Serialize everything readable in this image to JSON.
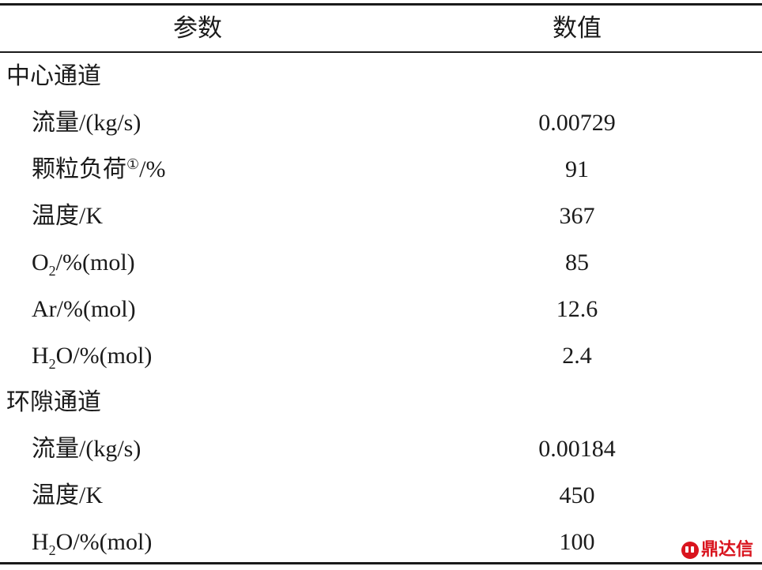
{
  "header": {
    "param": "参数",
    "value": "数值"
  },
  "sections": [
    {
      "title": "中心通道",
      "rows": [
        {
          "label": "流量/(kg/s)",
          "value": "0.00729"
        },
        {
          "label_main": "颗粒负荷",
          "label_mark": "①",
          "label_tail": "/%",
          "value": "91"
        },
        {
          "label": "温度/K",
          "value": "367"
        },
        {
          "label_main": "O",
          "label_sub": "2",
          "label_tail": "/%(mol)",
          "value": "85"
        },
        {
          "label": "Ar/%(mol)",
          "value": "12.6"
        },
        {
          "label_main": "H",
          "label_sub": "2",
          "label_tail": "O/%(mol)",
          "value": "2.4"
        }
      ]
    },
    {
      "title": "环隙通道",
      "rows": [
        {
          "label": "流量/(kg/s)",
          "value": "0.00184"
        },
        {
          "label": "温度/K",
          "value": "450"
        },
        {
          "label_main": "H",
          "label_sub": "2",
          "label_tail": "O/%(mol)",
          "value": "100"
        }
      ]
    }
  ],
  "watermark": {
    "text": "鼎达信",
    "color": "#d9141e"
  }
}
